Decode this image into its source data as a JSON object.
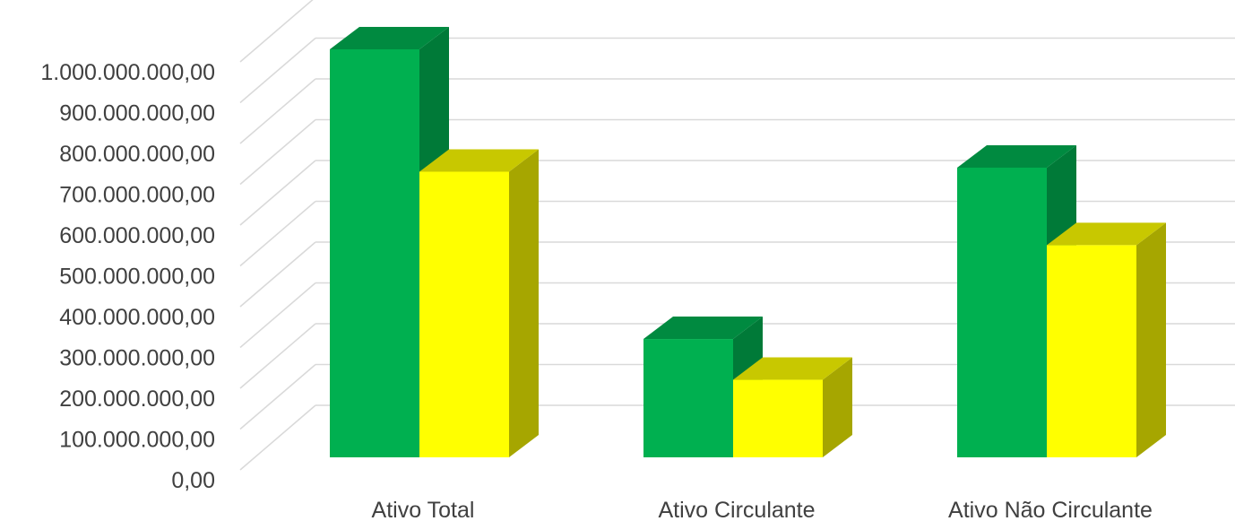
{
  "chart_data": {
    "type": "bar",
    "style": "3d-clustered-column",
    "categories": [
      "Ativo Total",
      "Ativo Circulante",
      "Ativo Não Circulante"
    ],
    "series": [
      {
        "values": [
          1000000000,
          290000000,
          710000000
        ],
        "color": "#00b050",
        "side_color": "#007a38",
        "top_color": "#008a40"
      },
      {
        "values": [
          700000000,
          190000000,
          520000000
        ],
        "color": "#ffff00",
        "side_color": "#a6a600",
        "top_color": "#c8c800"
      }
    ],
    "y_ticks": [
      "0,00",
      "100.000.000,00",
      "200.000.000,00",
      "300.000.000,00",
      "400.000.000,00",
      "500.000.000,00",
      "600.000.000,00",
      "700.000.000,00",
      "800.000.000,00",
      "900.000.000,00",
      "1.000.000.000,00"
    ],
    "ylim": [
      0,
      1000000000
    ],
    "grid": true,
    "legend": "none"
  }
}
